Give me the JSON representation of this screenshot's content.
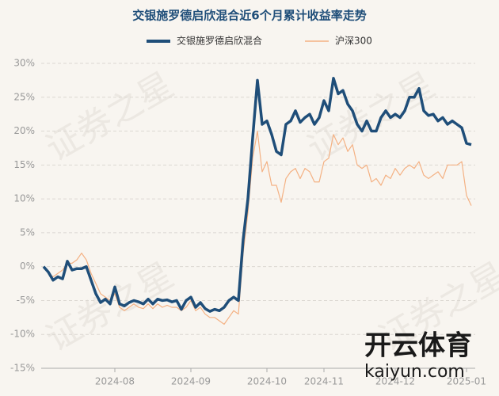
{
  "chart_data": {
    "type": "line",
    "title": "交银施罗德启欣混合近6个月累计收益率走势",
    "categories": [
      null,
      null,
      null,
      null,
      null,
      null,
      null,
      null,
      null,
      null,
      null,
      null,
      null,
      null,
      null,
      "2024-08",
      null,
      null,
      null,
      null,
      null,
      null,
      null,
      null,
      null,
      null,
      null,
      null,
      null,
      null,
      null,
      "2024-09",
      null,
      null,
      null,
      null,
      null,
      null,
      null,
      null,
      null,
      null,
      null,
      null,
      null,
      null,
      null,
      "2024-10",
      null,
      null,
      null,
      null,
      null,
      null,
      null,
      null,
      null,
      null,
      null,
      "2024-11",
      null,
      null,
      null,
      null,
      null,
      null,
      null,
      null,
      null,
      null,
      null,
      null,
      null,
      null,
      "2024-12",
      null,
      null,
      null,
      null,
      null,
      null,
      null,
      null,
      null,
      null,
      null,
      null,
      null,
      null,
      "2025-01",
      null
    ],
    "series": [
      {
        "name": "交银施罗德启欣混合",
        "color": "#1f4e79",
        "values": [
          0,
          -0.8,
          -2,
          -1.5,
          -1.8,
          0.8,
          -0.5,
          -0.3,
          -0.3,
          0,
          -2,
          -4,
          -5.3,
          -4.8,
          -5.5,
          -3,
          -5.5,
          -5.8,
          -5.3,
          -5,
          -5.2,
          -5.5,
          -4.8,
          -5.5,
          -4.8,
          -5,
          -4.9,
          -5.2,
          -5,
          -6.3,
          -5,
          -4.5,
          -6,
          -5.3,
          -6.2,
          -6.6,
          -6.3,
          -6.5,
          -6,
          -5,
          -4.5,
          -5,
          4,
          10,
          19,
          27.5,
          21,
          21.5,
          19.5,
          17,
          16.5,
          21,
          21.5,
          23,
          21.3,
          22,
          22.5,
          21,
          22,
          24.5,
          23,
          27.8,
          25.5,
          26,
          24,
          23,
          21,
          20,
          21.5,
          20,
          20,
          22,
          23,
          22,
          22.5,
          22,
          23,
          25,
          25,
          26.3,
          23,
          22.3,
          22.5,
          21.5,
          22,
          21,
          21.5,
          21,
          20.5,
          18.2,
          18
        ]
      },
      {
        "name": "沪深300",
        "color": "#f4b183",
        "values": [
          0,
          -1,
          -1.5,
          -1,
          -0.5,
          0.5,
          0.5,
          1,
          2,
          1,
          -1,
          -2.5,
          -4,
          -4.5,
          -5,
          -4,
          -6,
          -6.5,
          -6,
          -5.5,
          -6,
          -6.2,
          -5.5,
          -6.2,
          -5.5,
          -6,
          -5.7,
          -6,
          -6,
          -6.5,
          -6,
          -5,
          -6.5,
          -6,
          -7,
          -7.5,
          -7.5,
          -8,
          -8.5,
          -7.5,
          -6.5,
          -7,
          2,
          8,
          16,
          20,
          14,
          15.5,
          12,
          12,
          9.5,
          13,
          14,
          14.5,
          13,
          14.5,
          14,
          12.5,
          12.5,
          15.5,
          16,
          19.5,
          18,
          19,
          17,
          18,
          15,
          14.5,
          15,
          12.5,
          13,
          12,
          13.5,
          13,
          14.5,
          13.5,
          14.5,
          15,
          14.5,
          15.5,
          13.5,
          13,
          13.5,
          14,
          13,
          15,
          15,
          15,
          15.5,
          10.5,
          9
        ]
      }
    ],
    "ylim": [
      -15,
      30
    ],
    "yticks": [
      {
        "value": -15,
        "label": "-15%"
      },
      {
        "value": -10,
        "label": "-10%"
      },
      {
        "value": -5,
        "label": "-5%"
      },
      {
        "value": 0,
        "label": "0%"
      },
      {
        "value": 5,
        "label": "5%"
      },
      {
        "value": 10,
        "label": "10%"
      },
      {
        "value": 15,
        "label": "15%"
      },
      {
        "value": 20,
        "label": "20%"
      },
      {
        "value": 25,
        "label": "25%"
      },
      {
        "value": 30,
        "label": "30%"
      }
    ],
    "grid": true,
    "legend": "top",
    "watermarks": [
      "证券之星",
      "开云体育",
      "kaiyun.com"
    ]
  }
}
